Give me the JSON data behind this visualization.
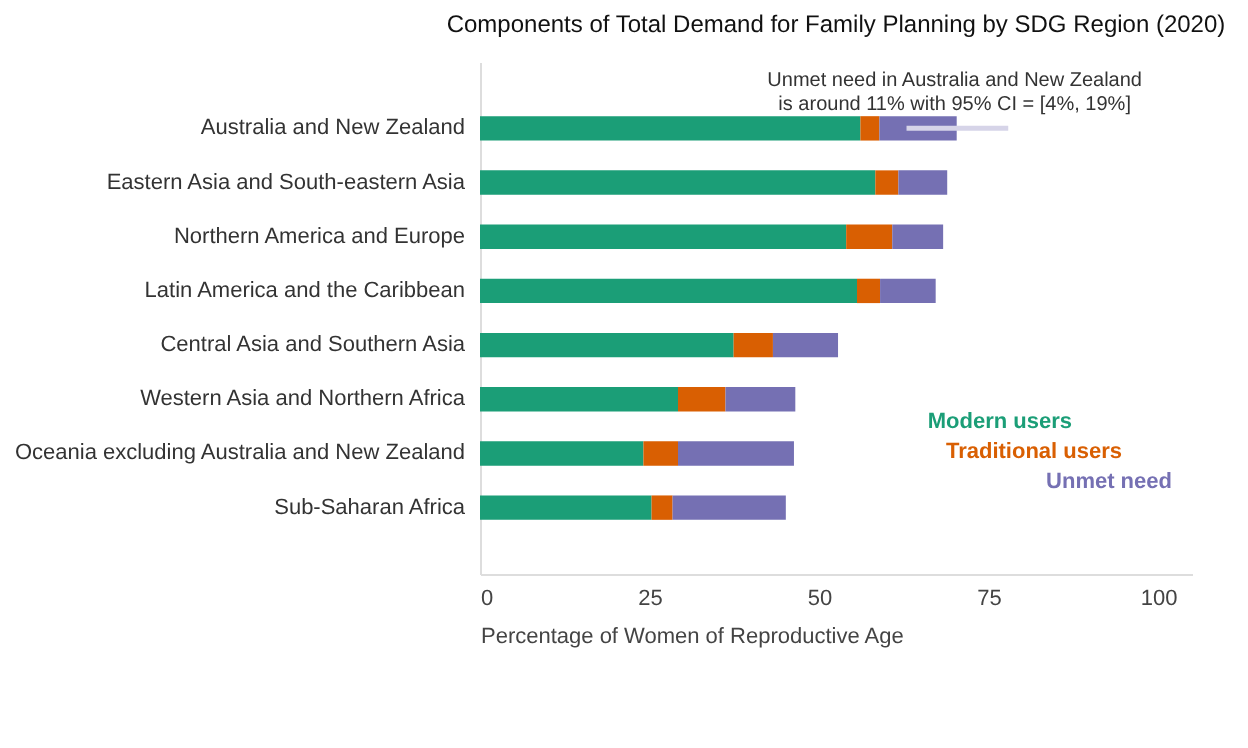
{
  "chart_data": {
    "type": "bar",
    "orientation": "horizontal",
    "stacked": true,
    "title": "Components of Total Demand for Family Planning by SDG Region (2020)",
    "xlabel": "Percentage of Women of Reproductive Age",
    "categories": [
      "Australia and New Zealand",
      "Eastern Asia and South-eastern Asia",
      "Northern America and Europe",
      "Latin America and the Caribbean",
      "Central Asia and Southern Asia",
      "Western Asia and Northern Africa",
      "Oceania excluding Australia and New Zealand",
      "Sub-Saharan Africa"
    ],
    "series": [
      {
        "name": "Modern users",
        "color": "#1b9e77",
        "values": [
          56.1,
          58.3,
          54.0,
          55.6,
          37.4,
          29.2,
          24.1,
          25.3
        ]
      },
      {
        "name": "Traditional users",
        "color": "#d95f02",
        "values": [
          2.8,
          3.4,
          6.8,
          3.4,
          5.8,
          7.0,
          5.1,
          3.1
        ]
      },
      {
        "name": "Unmet need",
        "color": "#7570b3",
        "values": [
          11.4,
          7.2,
          7.5,
          8.2,
          9.6,
          10.3,
          17.1,
          16.7
        ],
        "errors": [
          [
            62.9,
            77.9
          ],
          null,
          null,
          null,
          null,
          null,
          null,
          null
        ]
      }
    ],
    "xlim": [
      0,
      105
    ],
    "xticks": [
      0,
      25,
      50,
      75,
      100
    ],
    "legend": "bottom right",
    "annotations": [
      {
        "text": "Unmet need in Australia and New Zealand\nis around 11% with 95% CI = [4%, 19%]",
        "x": 70,
        "y": "Australia and New Zealand"
      }
    ]
  }
}
